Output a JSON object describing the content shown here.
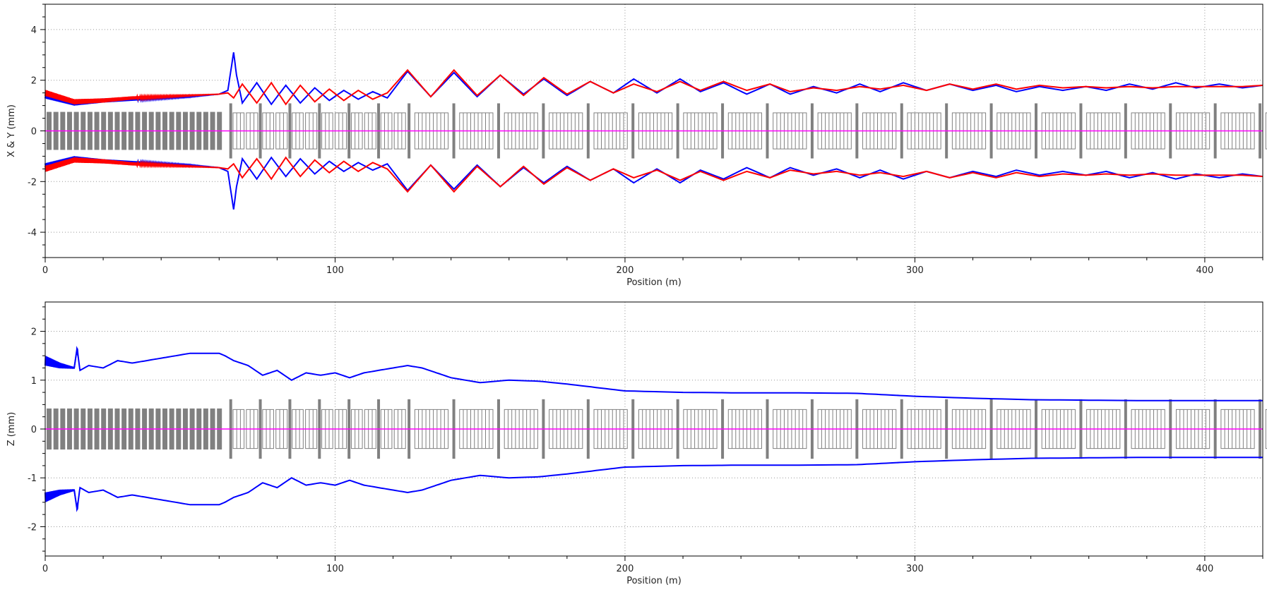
{
  "colors": {
    "x_envelope": "#0000ff",
    "y_envelope": "#ff0000",
    "z_envelope": "#0000ff",
    "axis_line": "#ff00ff",
    "element_fill": "#808080",
    "grid": "#999999"
  },
  "chart_data": [
    {
      "type": "line",
      "name": "transverse",
      "xlabel": "Position (m)",
      "ylabel": "X & Y (mm)",
      "xlim": [
        0,
        420
      ],
      "ylim": [
        -5,
        5
      ],
      "x_ticks": [
        0,
        100,
        200,
        300,
        400
      ],
      "x_tick_labels": [
        "0",
        "100",
        "200",
        "300",
        "400"
      ],
      "y_ticks": [
        -4,
        -2,
        0,
        2,
        4
      ],
      "y_tick_labels": [
        "-4",
        "-2",
        "0",
        "2",
        "4"
      ],
      "grid": true,
      "series": [
        {
          "key": "x",
          "color": "#0000ff",
          "x": [
            0,
            10,
            20,
            30,
            40,
            50,
            60,
            63,
            65,
            66,
            68,
            73,
            78,
            83,
            88,
            93,
            98,
            103,
            108,
            113,
            118,
            125,
            133,
            141,
            149,
            157,
            165,
            172,
            180,
            188,
            196,
            203,
            211,
            219,
            226,
            234,
            242,
            250,
            257,
            265,
            273,
            281,
            288,
            296,
            304,
            312,
            320,
            328,
            335,
            343,
            351,
            359,
            366,
            374,
            382,
            390,
            397,
            405,
            413,
            420
          ],
          "y": [
            1.4,
            1.1,
            1.2,
            1.25,
            1.3,
            1.35,
            1.45,
            1.6,
            3.1,
            2.2,
            1.1,
            1.9,
            1.05,
            1.8,
            1.1,
            1.7,
            1.2,
            1.6,
            1.25,
            1.55,
            1.3,
            2.35,
            1.35,
            2.3,
            1.35,
            2.2,
            1.45,
            2.05,
            1.4,
            1.95,
            1.5,
            2.05,
            1.5,
            2.05,
            1.55,
            1.9,
            1.45,
            1.85,
            1.45,
            1.75,
            1.5,
            1.85,
            1.55,
            1.9,
            1.6,
            1.85,
            1.6,
            1.8,
            1.55,
            1.75,
            1.6,
            1.75,
            1.6,
            1.85,
            1.65,
            1.9,
            1.7,
            1.85,
            1.7,
            1.8
          ]
        },
        {
          "key": "y",
          "color": "#ff0000",
          "x": [
            0,
            10,
            20,
            30,
            40,
            50,
            60,
            63,
            65,
            68,
            73,
            78,
            83,
            88,
            93,
            98,
            103,
            108,
            113,
            118,
            125,
            133,
            141,
            149,
            157,
            165,
            172,
            180,
            188,
            196,
            203,
            211,
            219,
            226,
            234,
            242,
            250,
            257,
            265,
            273,
            281,
            288,
            296,
            304,
            312,
            320,
            328,
            335,
            343,
            351,
            359,
            366,
            374,
            382,
            390,
            397,
            405,
            413,
            420
          ],
          "y": [
            1.5,
            1.15,
            1.2,
            1.3,
            1.35,
            1.4,
            1.45,
            1.5,
            1.3,
            1.85,
            1.1,
            1.9,
            1.05,
            1.8,
            1.15,
            1.65,
            1.2,
            1.6,
            1.25,
            1.5,
            2.4,
            1.35,
            2.4,
            1.4,
            2.2,
            1.4,
            2.1,
            1.45,
            1.95,
            1.5,
            1.85,
            1.55,
            1.95,
            1.6,
            1.95,
            1.6,
            1.85,
            1.55,
            1.7,
            1.6,
            1.75,
            1.65,
            1.8,
            1.6,
            1.85,
            1.65,
            1.85,
            1.65,
            1.8,
            1.7,
            1.75,
            1.7,
            1.75,
            1.7,
            1.75,
            1.75,
            1.75,
            1.75,
            1.8
          ]
        },
        {
          "key": "axis",
          "color": "#ff00ff",
          "x": [
            0,
            420
          ],
          "y": [
            0,
            0
          ]
        }
      ]
    },
    {
      "type": "line",
      "name": "longitudinal",
      "xlabel": "Position (m)",
      "ylabel": "Z (mm)",
      "xlim": [
        0,
        420
      ],
      "ylim": [
        -2.6,
        2.6
      ],
      "x_ticks": [
        0,
        100,
        200,
        300,
        400
      ],
      "x_tick_labels": [
        "0",
        "100",
        "200",
        "300",
        "400"
      ],
      "y_ticks": [
        -2,
        -1,
        0,
        1,
        2
      ],
      "y_tick_labels": [
        "-2",
        "-1",
        "0",
        "1",
        "2"
      ],
      "grid": true,
      "series": [
        {
          "key": "z",
          "color": "#0000ff",
          "x": [
            0,
            5,
            10,
            11,
            12,
            15,
            20,
            25,
            30,
            35,
            40,
            45,
            50,
            55,
            60,
            62,
            65,
            70,
            75,
            80,
            85,
            90,
            95,
            100,
            105,
            110,
            115,
            120,
            125,
            130,
            135,
            140,
            150,
            160,
            170,
            180,
            190,
            200,
            220,
            240,
            260,
            280,
            290,
            300,
            320,
            340,
            360,
            380,
            400,
            420
          ],
          "y": [
            1.4,
            1.3,
            1.25,
            1.65,
            1.2,
            1.3,
            1.25,
            1.4,
            1.35,
            1.4,
            1.45,
            1.5,
            1.55,
            1.55,
            1.55,
            1.5,
            1.4,
            1.3,
            1.1,
            1.2,
            1.0,
            1.15,
            1.1,
            1.15,
            1.05,
            1.15,
            1.2,
            1.25,
            1.3,
            1.25,
            1.15,
            1.05,
            0.95,
            1.0,
            0.98,
            0.92,
            0.85,
            0.78,
            0.75,
            0.74,
            0.74,
            0.73,
            0.7,
            0.67,
            0.63,
            0.6,
            0.59,
            0.58,
            0.58,
            0.58
          ]
        },
        {
          "key": "axis",
          "color": "#ff00ff",
          "x": [
            0,
            420
          ],
          "y": [
            0,
            0
          ]
        }
      ]
    }
  ]
}
